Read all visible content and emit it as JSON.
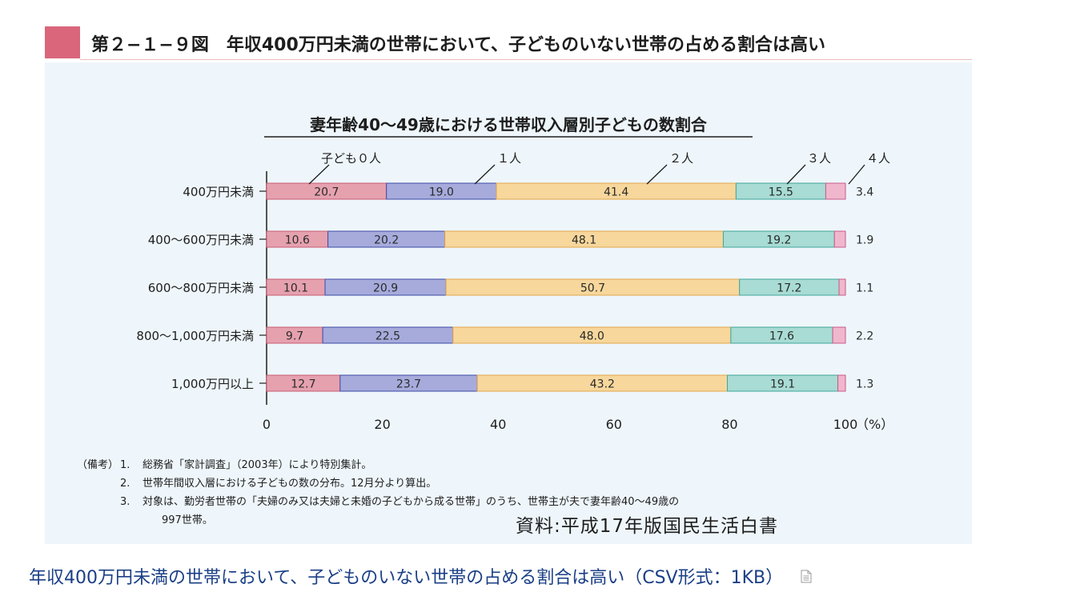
{
  "figure": {
    "title": "第２−１−９図　年収400万円未満の世帯において、子どものいない世帯の占める割合は高い",
    "colors": {
      "accent": "#d9667a",
      "panel_bg": "#eef6fb",
      "series": [
        "#e6a1ae",
        "#a6abdc",
        "#f7d79c",
        "#a8dcd4",
        "#f0b7cc"
      ],
      "series_edge": [
        "#c85a70",
        "#3f4aa6",
        "#e3a64b",
        "#3fa59a",
        "#c85a8a"
      ]
    }
  },
  "chart_data": {
    "type": "bar",
    "orientation": "horizontal",
    "stacked": true,
    "title": "妻年齢40～49歳における世帯収入層別子どもの数割合",
    "categories": [
      "400万円未満",
      "400～600万円未満",
      "600～800万円未満",
      "800～1,000万円未満",
      "1,000万円以上"
    ],
    "series": [
      {
        "name": "子ども０人",
        "values": [
          20.7,
          10.6,
          10.1,
          9.7,
          12.7
        ]
      },
      {
        "name": "１人",
        "values": [
          19.0,
          20.2,
          20.9,
          22.5,
          23.7
        ]
      },
      {
        "name": "２人",
        "values": [
          41.4,
          48.1,
          50.7,
          48.0,
          43.2
        ]
      },
      {
        "name": "３人",
        "values": [
          15.5,
          19.2,
          17.2,
          17.6,
          19.1
        ]
      },
      {
        "name": "４人",
        "values": [
          3.4,
          1.9,
          1.1,
          2.2,
          1.3
        ]
      }
    ],
    "value_labels": [
      [
        "20.7",
        "19.0",
        "41.4",
        "15.5",
        "3.4"
      ],
      [
        "10.6",
        "20.2",
        "48.1",
        "19.2",
        "1.9"
      ],
      [
        "10.1",
        "20.9",
        "50.7",
        "17.2",
        "1.1"
      ],
      [
        "9.7",
        "22.5",
        "48.0",
        "17.6",
        "2.2"
      ],
      [
        "12.7",
        "23.7",
        "43.2",
        "19.1",
        "1.3"
      ]
    ],
    "xlim": [
      0,
      100
    ],
    "xticks": [
      0,
      20,
      40,
      60,
      80,
      100
    ],
    "xtick_labels": [
      "0",
      "20",
      "40",
      "60",
      "80",
      "100"
    ],
    "xunit": "（%）",
    "legend_placement": "top, callouts over first row",
    "grid": false
  },
  "notes": {
    "head": "（備考）",
    "items": [
      {
        "num": "1.",
        "text": "総務省「家計調査」（2003年）により特別集計。"
      },
      {
        "num": "2.",
        "text": "世帯年間収入層における子どもの数の分布。12月分より算出。"
      },
      {
        "num": "3.",
        "text": "対象は、勤労者世帯の「夫婦のみ又は夫婦と未婚の子どもから成る世帯」のうち、世帯主が夫で妻年齢40～49歳の"
      }
    ],
    "item3_cont": "997世帯。"
  },
  "source": "資料:平成17年版国民生活白書",
  "caption": {
    "link_text": "年収400万円未満の世帯において、子どものいない世帯の占める割合は高い（CSV形式：1KB）",
    "icon": "document-file-icon"
  }
}
